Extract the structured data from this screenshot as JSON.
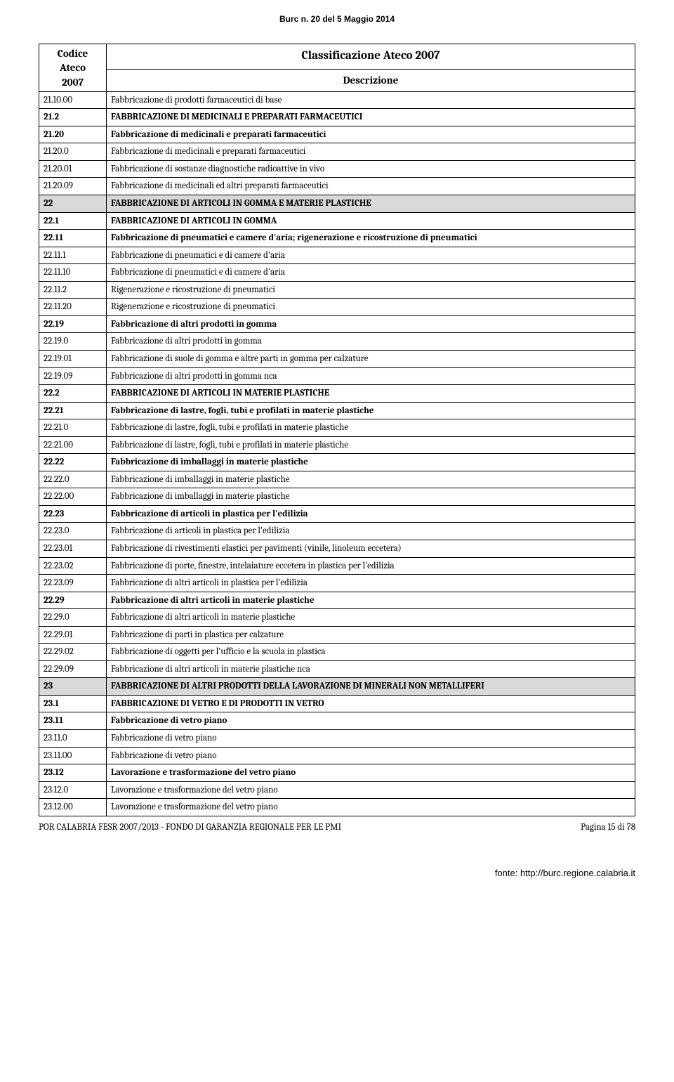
{
  "header": "Burc n. 20 del  5 Maggio 2014",
  "table_title": "Classificazione Ateco 2007",
  "col1_label_l1": "Codice",
  "col1_label_l2": "Ateco",
  "col1_label_l3": "2007",
  "col2_label": "Descrizione",
  "rows": [
    {
      "code": "21.10.00",
      "desc": "Fabbricazione di prodotti farmaceutici di base",
      "style": ""
    },
    {
      "code": "21.2",
      "desc": "FABBRICAZIONE DI MEDICINALI E PREPARATI FARMACEUTICI",
      "style": "bold"
    },
    {
      "code": "21.20",
      "desc": "Fabbricazione di medicinali e preparati farmaceutici",
      "style": "bold"
    },
    {
      "code": "21.20.0",
      "desc": "Fabbricazione di medicinali e preparati farmaceutici",
      "style": ""
    },
    {
      "code": "21.20.01",
      "desc": "Fabbricazione di sostanze diagnostiche radioattive in vivo",
      "style": ""
    },
    {
      "code": "21.20.09",
      "desc": "Fabbricazione di medicinali ed altri preparati farmaceutici",
      "style": ""
    },
    {
      "code": "22",
      "desc": "FABBRICAZIONE DI ARTICOLI IN GOMMA E MATERIE PLASTICHE",
      "style": "section"
    },
    {
      "code": "22.1",
      "desc": "FABBRICAZIONE DI ARTICOLI IN GOMMA",
      "style": "bold"
    },
    {
      "code": "22.11",
      "desc": "Fabbricazione di pneumatici e camere d'aria; rigenerazione e ricostruzione di pneumatici",
      "style": "bold"
    },
    {
      "code": "22.11.1",
      "desc": "Fabbricazione di pneumatici e di camere d'aria",
      "style": ""
    },
    {
      "code": "22.11.10",
      "desc": "Fabbricazione di pneumatici e di camere d'aria",
      "style": ""
    },
    {
      "code": "22.11.2",
      "desc": "Rigenerazione e ricostruzione di pneumatici",
      "style": ""
    },
    {
      "code": "22.11.20",
      "desc": "Rigenerazione e ricostruzione di pneumatici",
      "style": ""
    },
    {
      "code": "22.19",
      "desc": "Fabbricazione di altri prodotti in gomma",
      "style": "bold"
    },
    {
      "code": "22.19.0",
      "desc": "Fabbricazione di altri prodotti in gomma",
      "style": ""
    },
    {
      "code": "22.19.01",
      "desc": "Fabbricazione di suole di gomma e altre parti in gomma per calzature",
      "style": ""
    },
    {
      "code": "22.19.09",
      "desc": "Fabbricazione di altri prodotti in gomma nca",
      "style": ""
    },
    {
      "code": "22.2",
      "desc": "FABBRICAZIONE DI ARTICOLI IN MATERIE PLASTICHE",
      "style": "bold"
    },
    {
      "code": "22.21",
      "desc": "Fabbricazione di lastre, fogli, tubi e profilati in materie plastiche",
      "style": "bold"
    },
    {
      "code": "22.21.0",
      "desc": "Fabbricazione di lastre, fogli, tubi e profilati in materie plastiche",
      "style": ""
    },
    {
      "code": "22.21.00",
      "desc": "Fabbricazione di lastre, fogli, tubi e profilati in materie plastiche",
      "style": ""
    },
    {
      "code": "22.22",
      "desc": "Fabbricazione di imballaggi in materie plastiche",
      "style": "bold"
    },
    {
      "code": "22.22.0",
      "desc": "Fabbricazione di imballaggi in materie plastiche",
      "style": ""
    },
    {
      "code": "22.22.00",
      "desc": "Fabbricazione di imballaggi in materie plastiche",
      "style": ""
    },
    {
      "code": "22.23",
      "desc": "Fabbricazione di articoli in plastica per l'edilizia",
      "style": "bold"
    },
    {
      "code": "22.23.0",
      "desc": "Fabbricazione di articoli in plastica per l'edilizia",
      "style": ""
    },
    {
      "code": "22.23.01",
      "desc": "Fabbricazione di rivestimenti elastici per pavimenti (vinile, linoleum eccetera)",
      "style": ""
    },
    {
      "code": "22.23.02",
      "desc": "Fabbricazione di porte, finestre, intelaiature eccetera in plastica per l'edilizia",
      "style": ""
    },
    {
      "code": "22.23.09",
      "desc": "Fabbricazione di altri articoli in plastica per l'edilizia",
      "style": ""
    },
    {
      "code": "22.29",
      "desc": "Fabbricazione di altri articoli in materie plastiche",
      "style": "bold"
    },
    {
      "code": "22.29.0",
      "desc": "Fabbricazione di altri articoli in materie plastiche",
      "style": ""
    },
    {
      "code": "22.29.01",
      "desc": "Fabbricazione di parti in plastica per calzature",
      "style": ""
    },
    {
      "code": "22.29.02",
      "desc": "Fabbricazione di oggetti per l'ufficio e la scuola in plastica",
      "style": ""
    },
    {
      "code": "22.29.09",
      "desc": "Fabbricazione di altri articoli in materie plastiche nca",
      "style": ""
    },
    {
      "code": "23",
      "desc": "FABBRICAZIONE DI ALTRI PRODOTTI DELLA LAVORAZIONE DI MINERALI NON METALLIFERI",
      "style": "section",
      "justify": true
    },
    {
      "code": "23.1",
      "desc": "FABBRICAZIONE DI VETRO E DI PRODOTTI IN VETRO",
      "style": "bold"
    },
    {
      "code": "23.11",
      "desc": "Fabbricazione di vetro piano",
      "style": "bold"
    },
    {
      "code": "23.11.0",
      "desc": "Fabbricazione di vetro piano",
      "style": ""
    },
    {
      "code": "23.11.00",
      "desc": "Fabbricazione di vetro piano",
      "style": ""
    },
    {
      "code": "23.12",
      "desc": "Lavorazione e trasformazione del vetro piano",
      "style": "bold"
    },
    {
      "code": "23.12.0",
      "desc": "Lavorazione e trasformazione del vetro piano",
      "style": ""
    },
    {
      "code": "23.12.00",
      "desc": "Lavorazione e trasformazione del vetro piano",
      "style": ""
    }
  ],
  "footer_left": "POR CALABRIA FESR 2007/2013 - FONDO DI GARANZIA REGIONALE PER LE PMI",
  "footer_right": "Pagina 15 di 78",
  "source": "fonte: http://burc.regione.calabria.it"
}
